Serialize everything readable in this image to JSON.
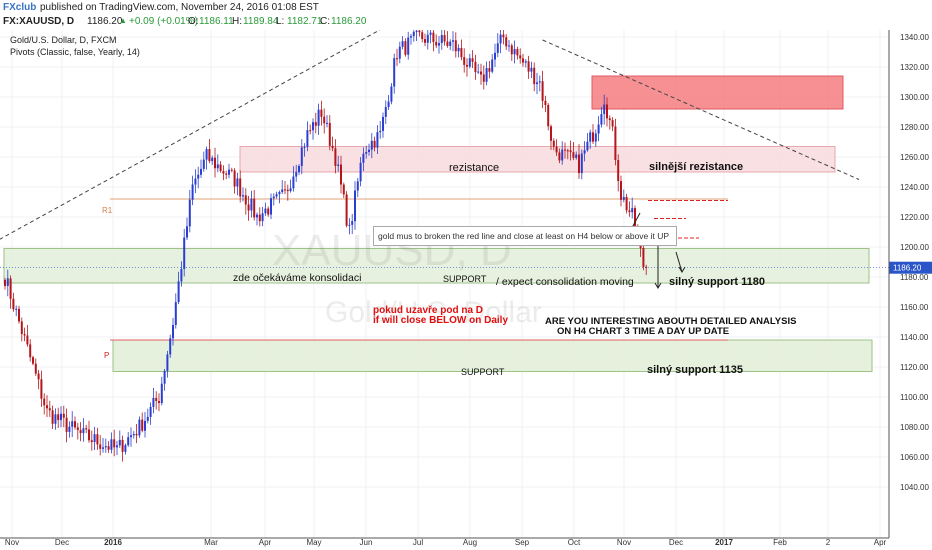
{
  "header": {
    "logo": "FXclub",
    "published": "published on TradingView.com, November 24, 2016 01:08 EST",
    "symbol": "FX:XAUUSD, D",
    "last": "1186.20",
    "change": "+0.09 (+0.01%)",
    "o_label": "O:",
    "o_value": "1186.11",
    "h_label": "H:",
    "h_value": "1189.84",
    "l_label": "L:",
    "l_value": "1182.71",
    "c_label": "C:",
    "c_value": "1186.20",
    "up_icon": "triangle-up-icon"
  },
  "legend": {
    "instrument": "Gold/U.S. Dollar, D, FXCM",
    "indicator": "Pivots (Classic, false, Yearly, 14)"
  },
  "watermark": {
    "symbol": "XAUUSD, D",
    "name": "Gold/U.S. Dollar"
  },
  "annotations": {
    "rezistance": "rezistance",
    "silnejsi": "silnější rezistance",
    "gold_note": "gold mus to broken the red line and close at least on H4 below or above it UP",
    "konsolidaci": "zde očekáváme konsolidaci",
    "support1": "SUPPORT",
    "expect": "/ expect consolidation moving",
    "silny1180": "silný support 1180",
    "pokud1": "pokud uzavře pod na D",
    "pokud2": "if will close BELOW on Daily",
    "are1": "ARE YOU INTERESTING ABOUTH DETAILED ANALYSIS",
    "are2": "ON H4 CHART 3 TIME A DAY UP DATE",
    "support2": "SUPPORT",
    "silny1135": "silný support 1135",
    "r1": "R1",
    "p": "P"
  },
  "colors": {
    "up": "#2a3fd1",
    "down": "#b5161b",
    "pivot": "#e0a070",
    "red_zone": "#f47c80",
    "pink_zone": "#f8dde0",
    "green_zone": "#e3efd9",
    "price_tag": "#2a55c8"
  },
  "chart_data": {
    "type": "candlestick",
    "symbol": "FX:XAUUSD",
    "timeframe": "D",
    "ylim": [
      1030,
      1350
    ],
    "y_ticks": [
      1040,
      1060,
      1080,
      1100,
      1120,
      1140,
      1160,
      1180,
      1200,
      1220,
      1240,
      1260,
      1280,
      1300,
      1320,
      1340
    ],
    "x_tick_labels": [
      "Nov",
      "Dec",
      "2016",
      "Mar",
      "Apr",
      "May",
      "Jun",
      "Jul",
      "Aug",
      "Sep",
      "Oct",
      "Nov",
      "Dec",
      "2017",
      "Feb",
      "2",
      "Apr"
    ],
    "last_price": 1186.2,
    "anchors": [
      {
        "t": 0,
        "p": 1180
      },
      {
        "t": 5,
        "p": 1150
      },
      {
        "t": 15,
        "p": 1090
      },
      {
        "t": 27,
        "p": 1075
      },
      {
        "t": 40,
        "p": 1065
      },
      {
        "t": 48,
        "p": 1080
      },
      {
        "t": 55,
        "p": 1100
      },
      {
        "t": 60,
        "p": 1150
      },
      {
        "t": 67,
        "p": 1240
      },
      {
        "t": 72,
        "p": 1260
      },
      {
        "t": 82,
        "p": 1245
      },
      {
        "t": 90,
        "p": 1220
      },
      {
        "t": 100,
        "p": 1235
      },
      {
        "t": 108,
        "p": 1275
      },
      {
        "t": 113,
        "p": 1290
      },
      {
        "t": 118,
        "p": 1260
      },
      {
        "t": 123,
        "p": 1210
      },
      {
        "t": 128,
        "p": 1265
      },
      {
        "t": 134,
        "p": 1275
      },
      {
        "t": 140,
        "p": 1330
      },
      {
        "t": 148,
        "p": 1340
      },
      {
        "t": 160,
        "p": 1335
      },
      {
        "t": 170,
        "p": 1310
      },
      {
        "t": 178,
        "p": 1340
      },
      {
        "t": 184,
        "p": 1325
      },
      {
        "t": 191,
        "p": 1310
      },
      {
        "t": 196,
        "p": 1265
      },
      {
        "t": 205,
        "p": 1255
      },
      {
        "t": 211,
        "p": 1280
      },
      {
        "t": 214,
        "p": 1300
      },
      {
        "t": 217,
        "p": 1275
      },
      {
        "t": 220,
        "p": 1235
      },
      {
        "t": 224,
        "p": 1220
      },
      {
        "t": 228,
        "p": 1188
      },
      {
        "t": 229,
        "p": 1186.2
      }
    ],
    "levels": {
      "R1": 1232,
      "P": 1138,
      "red_zone": [
        1292,
        1314
      ],
      "rezistance_zone": [
        1250,
        1267
      ],
      "support_zone_1": [
        1176,
        1199
      ],
      "support_zone_2": [
        1117,
        1138
      ],
      "dashed_red": [
        1231,
        1219,
        1206
      ]
    },
    "trendlines": [
      {
        "from": {
          "t": -2,
          "p": 1205
        },
        "to": {
          "t": 139,
          "p": 1350
        }
      },
      {
        "from": {
          "t": 192,
          "p": 1338
        },
        "to": {
          "t": 305,
          "p": 1245
        }
      }
    ],
    "grid": true
  }
}
